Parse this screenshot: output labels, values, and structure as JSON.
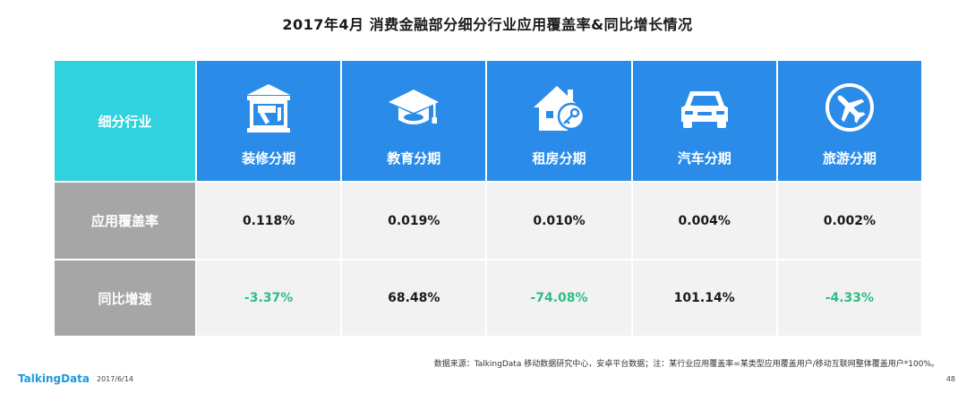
{
  "title": "2017年4月 消费金融部分细分行业应用覆盖率&同比增长情况",
  "table": {
    "corner_label": "细分行业",
    "columns": [
      {
        "label": "装修分期",
        "icon": "renovation-icon"
      },
      {
        "label": "教育分期",
        "icon": "graduation-cap-icon"
      },
      {
        "label": "租房分期",
        "icon": "house-key-icon"
      },
      {
        "label": "汽车分期",
        "icon": "car-icon"
      },
      {
        "label": "旅游分期",
        "icon": "airplane-icon"
      }
    ],
    "rows": [
      {
        "label": "应用覆盖率",
        "values": [
          "0.118%",
          "0.019%",
          "0.010%",
          "0.004%",
          "0.002%"
        ]
      },
      {
        "label": "同比增速",
        "values": [
          "-3.37%",
          "68.48%",
          "-74.08%",
          "101.14%",
          "-4.33%"
        ]
      }
    ]
  },
  "footer": {
    "source": "数据来源：TalkingData 移动数据研究中心，安卓平台数据；注：某行业应用覆盖率=某类型应用覆盖用户/移动互联网整体覆盖用户*100%。",
    "brand": "TalkingData",
    "date": "2017/6/14",
    "page_number": "48"
  },
  "colors": {
    "corner": "#2fd2de",
    "header": "#2a8ce8",
    "row_header": "#a6a6a6",
    "cell": "#f2f2f2",
    "negative": "#2ebd85",
    "brand": "#1e9ae0"
  }
}
